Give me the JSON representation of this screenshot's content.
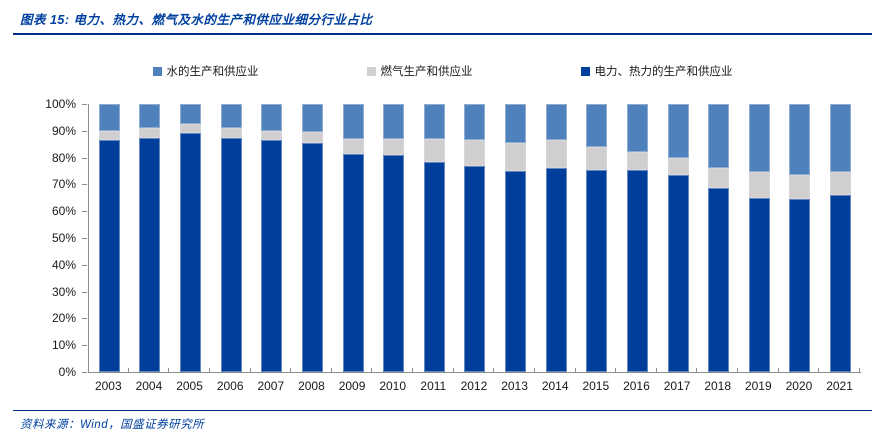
{
  "header": {
    "title": "图表 15: 电力、热力、燃气及水的生产和供应业细分行业占比"
  },
  "legend": {
    "items": [
      {
        "id": "water",
        "label": "水的生产和供应业",
        "color": "#4f81bd"
      },
      {
        "id": "gas",
        "label": "燃气生产和供应业",
        "color": "#d0cece"
      },
      {
        "id": "electricity",
        "label": "电力、热力的生产和供应业",
        "color": "#003e9b"
      }
    ]
  },
  "footer": {
    "source": "资料来源：Wind，国盛证券研究所"
  },
  "colors": {
    "accent_navy": "#002f87",
    "title_text": "#0041a0",
    "axis_line": "#8c8c8c",
    "tick_text": "#1a1a1a"
  },
  "chart_data": {
    "type": "bar",
    "stacked": true,
    "percent_stacked": true,
    "title": "电力、热力、燃气及水的生产和供应业细分行业占比",
    "xlabel": "",
    "ylabel": "",
    "ylim": [
      0,
      100
    ],
    "grid": false,
    "legend_position": "top",
    "yticks": [
      "0%",
      "10%",
      "20%",
      "30%",
      "40%",
      "50%",
      "60%",
      "70%",
      "80%",
      "90%",
      "100%"
    ],
    "categories": [
      "2003",
      "2004",
      "2005",
      "2006",
      "2007",
      "2008",
      "2009",
      "2010",
      "2011",
      "2012",
      "2013",
      "2014",
      "2015",
      "2016",
      "2017",
      "2018",
      "2019",
      "2020",
      "2021"
    ],
    "series": [
      {
        "name": "电力、热力的生产和供应业",
        "color": "#003e9b",
        "values": [
          86.5,
          87.5,
          89.0,
          87.5,
          86.5,
          85.5,
          81.5,
          81.0,
          78.5,
          77.0,
          75.0,
          76.0,
          75.5,
          75.5,
          73.5,
          68.5,
          65.0,
          64.5,
          66.0
        ]
      },
      {
        "name": "燃气生产和供应业",
        "color": "#d0cece",
        "values": [
          3.5,
          3.5,
          3.5,
          3.5,
          3.5,
          4.0,
          5.5,
          6.0,
          8.5,
          9.5,
          10.5,
          10.5,
          8.5,
          6.5,
          6.5,
          7.5,
          9.5,
          9.0,
          8.5
        ]
      },
      {
        "name": "水的生产和供应业",
        "color": "#4f81bd",
        "values": [
          10.0,
          9.0,
          7.5,
          9.0,
          10.0,
          10.5,
          13.0,
          13.0,
          13.0,
          13.5,
          14.5,
          13.5,
          16.0,
          18.0,
          20.0,
          24.0,
          25.5,
          26.5,
          25.5
        ]
      }
    ]
  }
}
